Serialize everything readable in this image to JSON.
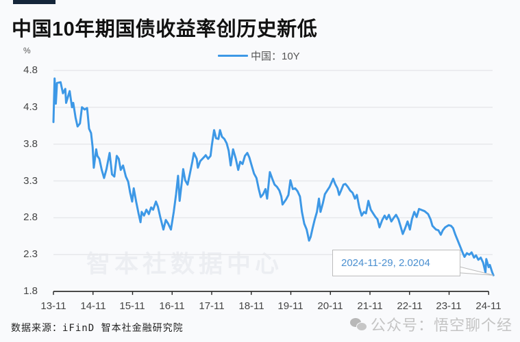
{
  "header": {
    "title": "中国10年期国债收益率创历史新低"
  },
  "chart": {
    "unit_label": "%",
    "legend": [
      {
        "label": "中国：10Y",
        "color": "#3d98e6"
      }
    ],
    "watermark": "智本社数据中心",
    "annotation": {
      "text": "2024-11-29, 2.0204",
      "date": "2024-11-29",
      "value": 2.0204
    }
  },
  "footer": {
    "source": "数据来源：iFinD 智本社金融研究院",
    "wechat_watermark": "公众号：悟空聊个经"
  },
  "colors": {
    "line": "#3d98e6",
    "grid": "#e7e8eb",
    "axis": "#222222",
    "annotation_text": "#4a8fd0",
    "title_bar": "#15263a"
  },
  "chart_data": {
    "type": "line",
    "title": "中国10年期国债收益率创历史新低",
    "xlabel": "",
    "ylabel": "%",
    "ylim": [
      1.8,
      4.8
    ],
    "yticks": [
      "4.8",
      "4.3",
      "3.8",
      "3.3",
      "2.8",
      "2.3",
      "1.8"
    ],
    "xticks": [
      "13-11",
      "14-11",
      "15-11",
      "16-11",
      "17-11",
      "18-11",
      "19-11",
      "20-11",
      "21-11",
      "22-11",
      "23-11",
      "24-11"
    ],
    "grid": "horizontal",
    "legend": [
      "中国：10Y"
    ],
    "legend_position": "top-center",
    "annotations": [
      {
        "text": "2024-11-29, 2.0204",
        "x": "2024-11-29",
        "y": 2.0204
      }
    ],
    "series": [
      {
        "name": "中国：10Y",
        "x": [
          2013.83,
          2013.86,
          2013.89,
          2013.92,
          2014.01,
          2014.07,
          2014.13,
          2014.15,
          2014.24,
          2014.3,
          2014.33,
          2014.39,
          2014.44,
          2014.5,
          2014.55,
          2014.62,
          2014.68,
          2014.7,
          2014.73,
          2014.78,
          2014.82,
          2014.85,
          2014.91,
          2014.94,
          2014.99,
          2015.05,
          2015.11,
          2015.17,
          2015.25,
          2015.31,
          2015.37,
          2015.43,
          2015.48,
          2015.53,
          2015.59,
          2015.66,
          2015.72,
          2015.77,
          2015.82,
          2015.86,
          2015.92,
          2015.98,
          2016.03,
          2016.06,
          2016.12,
          2016.18,
          2016.24,
          2016.3,
          2016.35,
          2016.42,
          2016.47,
          2016.53,
          2016.61,
          2016.67,
          2016.73,
          2016.8,
          2016.87,
          2016.93,
          2016.98,
          2017.02,
          2017.08,
          2017.11,
          2017.16,
          2017.22,
          2017.28,
          2017.34,
          2017.38,
          2017.45,
          2017.48,
          2017.54,
          2017.63,
          2017.68,
          2017.74,
          2017.8,
          2017.83,
          2017.89,
          2017.94,
          2018.0,
          2018.04,
          2018.09,
          2018.15,
          2018.21,
          2018.26,
          2018.31,
          2018.37,
          2018.44,
          2018.5,
          2018.55,
          2018.61,
          2018.67,
          2018.73,
          2018.78,
          2018.84,
          2018.9,
          2018.96,
          2019.02,
          2019.07,
          2019.13,
          2019.19,
          2019.23,
          2019.3,
          2019.36,
          2019.42,
          2019.48,
          2019.54,
          2019.59,
          2019.62,
          2019.71,
          2019.77,
          2019.82,
          2019.88,
          2019.94,
          2020.0,
          2020.06,
          2020.11,
          2020.17,
          2020.23,
          2020.29,
          2020.33,
          2020.38,
          2020.43,
          2020.49,
          2020.54,
          2020.58,
          2020.64,
          2020.69,
          2020.75,
          2020.81,
          2020.9,
          2020.95,
          2021.01,
          2021.05,
          2021.1,
          2021.16,
          2021.21,
          2021.27,
          2021.33,
          2021.39,
          2021.45,
          2021.5,
          2021.56,
          2021.62,
          2021.68,
          2021.73,
          2021.79,
          2021.85,
          2021.91,
          2021.97,
          2022.02,
          2022.07,
          2022.14,
          2022.2,
          2022.25,
          2022.31,
          2022.37,
          2022.43,
          2022.49,
          2022.55,
          2022.6,
          2022.66,
          2022.72,
          2022.78,
          2022.84,
          2022.89,
          2022.95,
          2023.01,
          2023.07,
          2023.12,
          2023.21,
          2023.3,
          2023.36,
          2023.41,
          2023.5,
          2023.56,
          2023.62,
          2023.67,
          2023.73,
          2023.82,
          2023.88,
          2023.93,
          2023.99,
          2024.05,
          2024.11,
          2024.17,
          2024.22,
          2024.28,
          2024.34,
          2024.4,
          2024.46,
          2024.51,
          2024.57,
          2024.63,
          2024.69,
          2024.75,
          2024.77,
          2024.83,
          2024.86,
          2024.92,
          2024.95
        ],
        "values": [
          4.1,
          4.69,
          4.35,
          4.63,
          4.64,
          4.49,
          4.55,
          4.36,
          4.52,
          4.3,
          4.36,
          4.16,
          4.04,
          4.08,
          4.3,
          4.27,
          4.29,
          4.19,
          4.01,
          3.95,
          3.76,
          3.48,
          3.73,
          3.64,
          3.6,
          3.45,
          3.34,
          3.46,
          3.68,
          3.39,
          3.36,
          3.64,
          3.6,
          3.45,
          3.51,
          3.36,
          3.29,
          3.14,
          3.02,
          3.2,
          3.02,
          2.86,
          2.74,
          2.88,
          2.83,
          2.91,
          2.85,
          2.94,
          2.91,
          3.02,
          2.95,
          2.81,
          2.64,
          2.77,
          2.72,
          2.64,
          2.88,
          3.12,
          3.37,
          3.03,
          3.31,
          3.46,
          3.31,
          3.25,
          3.4,
          3.56,
          3.68,
          3.6,
          3.48,
          3.57,
          3.62,
          3.65,
          3.6,
          3.64,
          3.77,
          3.99,
          3.88,
          3.87,
          3.99,
          3.9,
          3.87,
          3.81,
          3.71,
          3.51,
          3.73,
          3.6,
          3.45,
          3.56,
          3.53,
          3.64,
          3.68,
          3.62,
          3.51,
          3.4,
          3.34,
          3.19,
          3.08,
          3.12,
          3.19,
          3.06,
          3.42,
          3.33,
          3.25,
          3.22,
          3.17,
          3.09,
          2.98,
          3.05,
          3.11,
          3.31,
          3.19,
          3.2,
          3.16,
          3.09,
          2.88,
          2.72,
          2.64,
          2.49,
          2.54,
          2.66,
          2.77,
          2.88,
          3.06,
          2.88,
          3.0,
          3.12,
          3.17,
          3.22,
          3.33,
          3.26,
          3.2,
          3.11,
          3.17,
          3.25,
          3.26,
          3.22,
          3.17,
          3.14,
          3.06,
          3.11,
          2.94,
          2.83,
          2.88,
          2.86,
          3.03,
          2.91,
          2.86,
          2.81,
          2.78,
          2.67,
          2.77,
          2.83,
          2.78,
          2.84,
          2.75,
          2.8,
          2.84,
          2.78,
          2.69,
          2.58,
          2.66,
          2.75,
          2.64,
          2.78,
          2.88,
          2.81,
          2.92,
          2.91,
          2.89,
          2.85,
          2.78,
          2.69,
          2.64,
          2.63,
          2.57,
          2.63,
          2.67,
          2.7,
          2.69,
          2.66,
          2.57,
          2.49,
          2.41,
          2.33,
          2.27,
          2.32,
          2.3,
          2.33,
          2.26,
          2.29,
          2.23,
          2.26,
          2.19,
          2.06,
          2.24,
          2.13,
          2.16,
          2.06,
          2.0204
        ]
      }
    ]
  }
}
